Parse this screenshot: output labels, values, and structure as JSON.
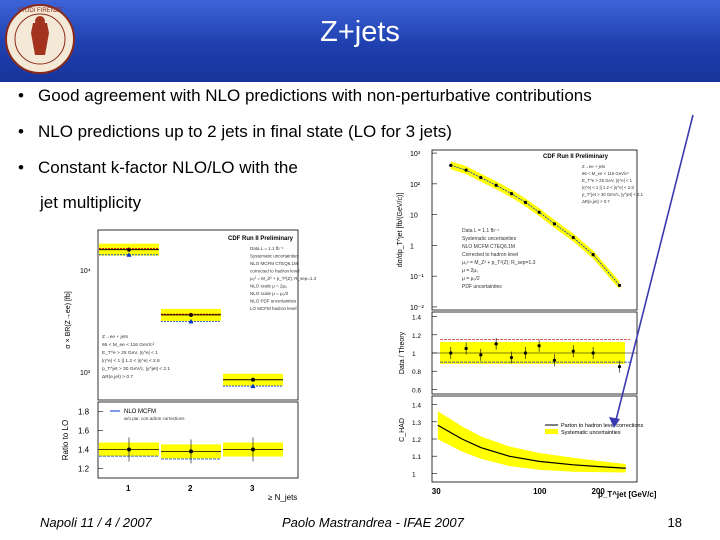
{
  "slide": {
    "title": "Z+jets",
    "bullets": [
      "Good agreement with NLO predictions with non-perturbative contributions",
      "NLO predictions up to 2 jets in final state (LO for 3 jets)",
      "Constant k-factor NLO/LO with the",
      "jet multiplicity"
    ],
    "seal_text": "STUDI FIRENZE"
  },
  "footer": {
    "left": "Napoli 11 / 4 / 2007",
    "center": "Paolo Mastrandrea - IFAE 2007",
    "page": "18"
  },
  "colors": {
    "title_bg": "#2347c0",
    "band": "#ffff00",
    "arrow": "#3a3ab0"
  },
  "chart_data": [
    {
      "type": "scatter",
      "panel": "top-left",
      "title": "CDF Run II Preliminary",
      "ylabel": "σ × BR(Z→ee) [fb]",
      "y_ticks": [
        "10⁴",
        "10³"
      ],
      "legend": [
        "Data  L = 1.1 fb⁻¹",
        "Systematic uncertainties",
        "NLO MCFM CTEQ6.1M",
        "corrected to hadron level",
        "μ₀² = M_Z² + p_T²(Z); R_sep=1.3",
        "NLO scale μ = 2μ₀",
        "NLO scale μ = μ₀/2",
        "NLO PDF uncertainties",
        "LO MCFM hadron level"
      ],
      "cuts": [
        "Z→ee + jets",
        "66 < M_ee < 116 GeV/c²",
        "E_T^e > 25 GeV, |η^e| < 1",
        "|η^e| < 1 || 1.2 < |η^e| < 2.8",
        "p_T^jet > 30 GeV/c, |y^jet| < 2.1",
        "ΔR(e,jet) > 0.7"
      ],
      "x": [
        1,
        2,
        3
      ],
      "series": [
        {
          "name": "Data  L = 1.1 fb⁻¹",
          "values": [
            14000,
            2000,
            290
          ]
        },
        {
          "name": "NLO MCFM CTEQ6.1M",
          "values": [
            14500,
            2050,
            null
          ]
        },
        {
          "name": "LO MCFM hadron level",
          "values": [
            12000,
            1650,
            240
          ]
        }
      ]
    },
    {
      "type": "scatter",
      "panel": "bottom-left",
      "ylabel": "Ratio to LO",
      "xlabel": "≥ N_jets",
      "legend": [
        "NLO MCFM",
        "w/o par. corr.adron corrections"
      ],
      "x_ticks": [
        "1",
        "2",
        "3"
      ],
      "y_ticks": [
        "1.2",
        "1.4",
        "1.6",
        "1.8"
      ],
      "ylim": [
        1.1,
        1.9
      ],
      "x": [
        1,
        2,
        3
      ],
      "series": [
        {
          "name": "Data",
          "values": [
            1.4,
            1.38,
            1.4
          ]
        },
        {
          "name": "NLO MCFM",
          "values": [
            1.33,
            1.3,
            null
          ]
        }
      ]
    },
    {
      "type": "scatter",
      "panel": "top-right",
      "title": "CDF Run II Preliminary",
      "ylabel": "dσ/dp_T^jet [fb/(GeV/c)]",
      "y_ticks": [
        "10³",
        "10²",
        "10",
        "1",
        "10⁻¹",
        "10⁻²"
      ],
      "legend": [
        "Data  L = 1.1 fb⁻¹",
        "Systematic uncertainties",
        "NLO MCFM CTEQ6.1M",
        "Corrected to hadron level",
        "μ₀² = M_Z² + p_T²(Z); R_sep=1.3",
        "μ = 2μ₀",
        "μ = μ₀/2",
        "PDF uncertainties"
      ],
      "cuts": [
        "Z→ee + jets",
        "66 < M_ee < 116 GeV/c²",
        "E_T^e > 25 GeV, |η^e| < 1",
        "|η^e| < 1 || 1.2 < |η^e| < 2.8",
        "p_T^jet > 30 GeV/c, |y^jet| < 2.1",
        "ΔR(e,jet) > 0.7"
      ],
      "x": [
        35,
        42,
        50,
        60,
        72,
        85,
        100,
        120,
        150,
        190,
        260
      ],
      "values": [
        400,
        280,
        160,
        90,
        48,
        25,
        12,
        5,
        1.8,
        0.5,
        0.05
      ]
    },
    {
      "type": "scatter",
      "panel": "middle-right",
      "ylabel": "Data / Theory",
      "y_ticks": [
        "1.4",
        "1.2",
        "1",
        "0.8",
        "0.6"
      ],
      "ylim": [
        0.55,
        1.45
      ],
      "x": [
        35,
        42,
        50,
        60,
        72,
        85,
        100,
        120,
        150,
        190,
        260
      ],
      "values": [
        1.0,
        1.05,
        0.98,
        1.1,
        0.95,
        1.0,
        1.08,
        0.92,
        1.02,
        1.0,
        0.85
      ]
    },
    {
      "type": "line",
      "panel": "bottom-right",
      "ylabel": "C_HAD",
      "xlabel": "p_T^jet  [GeV/c]",
      "legend": [
        "Parton to hadron level corrections",
        "Systematic uncertainties"
      ],
      "x_ticks": [
        "30",
        "100",
        "200"
      ],
      "y_ticks": [
        "1.4",
        "1.3",
        "1.2",
        "1.1",
        "1"
      ],
      "ylim": [
        0.95,
        1.45
      ],
      "x": [
        30,
        40,
        50,
        70,
        100,
        150,
        200,
        280
      ],
      "values": [
        1.28,
        1.2,
        1.15,
        1.1,
        1.07,
        1.05,
        1.04,
        1.03
      ]
    }
  ]
}
